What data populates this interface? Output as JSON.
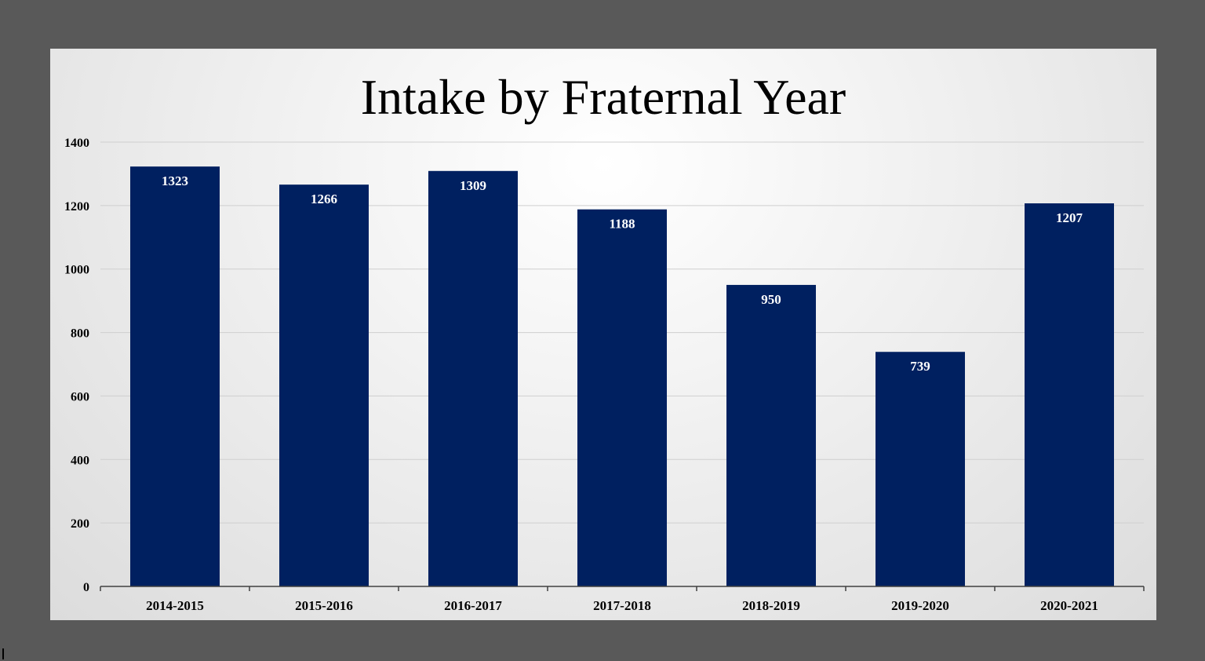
{
  "chart_data": {
    "type": "bar",
    "title": "Intake by Fraternal Year",
    "xlabel": "",
    "ylabel": "",
    "categories": [
      "2014-2015",
      "2015-2016",
      "2016-2017",
      "2017-2018",
      "2018-2019",
      "2019-2020",
      "2020-2021"
    ],
    "values": [
      1323,
      1266,
      1309,
      1188,
      950,
      739,
      1207
    ],
    "data_labels": [
      "1323",
      "1266",
      "1309",
      "1188",
      "950",
      "739",
      "1207"
    ],
    "ylim": [
      0,
      1400
    ],
    "yticks": [
      0,
      200,
      400,
      600,
      800,
      1000,
      1200,
      1400
    ],
    "grid": true,
    "legend": "none",
    "bar_color": "#002060",
    "label_color": "#ffffff",
    "background_color": "#595959"
  }
}
